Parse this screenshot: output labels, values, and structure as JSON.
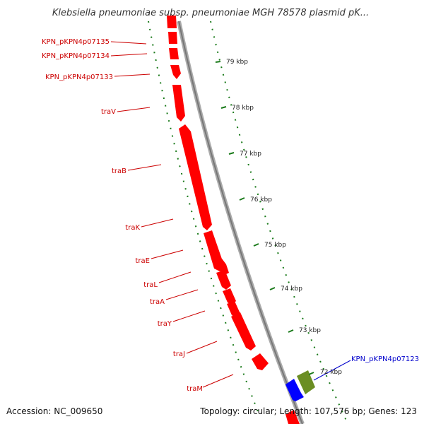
{
  "title": "Klebsiella pneumoniae subsp. pneumoniae MGH 78578 plasmid pK...",
  "footer": {
    "accession": "Accession: NC_009650",
    "summary": "Topology: circular; Length: 107,576 bp; Genes: 123"
  },
  "colors": {
    "forward_gene": "#ff0000",
    "reverse_gene_blue": "#0000ff",
    "reverse_gene_green": "#6b8e23",
    "gene_label": "#cc0000",
    "gene_label_blue": "#0000cc",
    "tick": "#1a7a1a",
    "backbone": "#888888"
  },
  "gene_labels": [
    {
      "id": "kpn07135",
      "text": "KPN_pKPN4p07135"
    },
    {
      "id": "kpn07134",
      "text": "KPN_pKPN4p07134"
    },
    {
      "id": "kpn07133",
      "text": "KPN_pKPN4p07133"
    },
    {
      "id": "traV",
      "text": "traV"
    },
    {
      "id": "traB",
      "text": "traB"
    },
    {
      "id": "traK",
      "text": "traK"
    },
    {
      "id": "traE",
      "text": "traE"
    },
    {
      "id": "traL",
      "text": "traL"
    },
    {
      "id": "traA",
      "text": "traA"
    },
    {
      "id": "traY",
      "text": "traY"
    },
    {
      "id": "traJ",
      "text": "traJ"
    },
    {
      "id": "traM",
      "text": "traM"
    },
    {
      "id": "kpn07123",
      "text": "KPN_pKPN4p07123"
    }
  ],
  "kbp_ticks": [
    {
      "id": "t79",
      "text": "79 kbp"
    },
    {
      "id": "t78",
      "text": "78 kbp"
    },
    {
      "id": "t77",
      "text": "77 kbp"
    },
    {
      "id": "t76",
      "text": "76 kbp"
    },
    {
      "id": "t75",
      "text": "75 kbp"
    },
    {
      "id": "t74",
      "text": "74 kbp"
    },
    {
      "id": "t73",
      "text": "73 kbp"
    },
    {
      "id": "t72",
      "text": "72 kbp"
    }
  ]
}
